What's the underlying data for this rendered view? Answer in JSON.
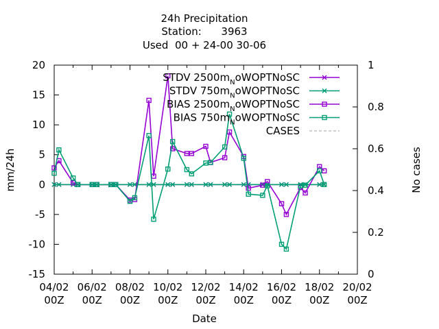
{
  "title": {
    "line1": "24h Precipitation",
    "line2": "Station:      3963",
    "line3": "Used  00 + 24-00 30-06"
  },
  "chart_data": {
    "type": "line",
    "xlabel": "Date",
    "ylabel": "mm/24h",
    "y2label": "No cases",
    "xlim": [
      "04/02 00Z",
      "20/02 00Z"
    ],
    "ylim": [
      -15,
      20
    ],
    "y2lim": [
      0,
      1
    ],
    "grid": false,
    "legend_position": "top-right",
    "x_ticks": [
      "04/02\n00Z",
      "06/02\n00Z",
      "08/02\n00Z",
      "10/02\n00Z",
      "12/02\n00Z",
      "14/02\n00Z",
      "16/02\n00Z",
      "18/02\n00Z",
      "20/02\n00Z"
    ],
    "y_ticks": [
      "-15",
      "-10",
      "-5",
      "0",
      "5",
      "10",
      "15",
      "20"
    ],
    "y2_ticks": [
      "0",
      "0.2",
      "0.4",
      "0.6",
      "0.8",
      "1"
    ],
    "series": [
      {
        "name": "STDV 2500m",
        "name_sub": "N",
        "name_suffix": "oWOPTNoSC",
        "color": "#9400d3",
        "marker": "x",
        "x": [
          0,
          0.25,
          1,
          1.25,
          2,
          2.25,
          3,
          3.25,
          4,
          4.25,
          5,
          5.25,
          6,
          6.25,
          7,
          7.25,
          8,
          8.25,
          9,
          9.25,
          10,
          10.25,
          11,
          11.25,
          12,
          12.25,
          13,
          13.25,
          14,
          14.25
        ],
        "values": [
          0,
          0,
          0,
          0,
          0,
          0,
          0,
          0,
          0,
          0,
          0,
          0,
          0,
          0,
          0,
          0,
          0,
          0,
          0,
          0,
          0,
          0,
          0,
          0,
          0,
          0,
          0,
          0,
          0,
          0
        ]
      },
      {
        "name": "STDV 750m",
        "name_sub": "N",
        "name_suffix": "oWOPTNoSC",
        "color": "#009e73",
        "marker": "x",
        "x": [
          0,
          0.25,
          1,
          1.25,
          2,
          2.25,
          3,
          3.25,
          4,
          4.25,
          5,
          5.25,
          6,
          6.25,
          7,
          7.25,
          8,
          8.25,
          9,
          9.25,
          10,
          10.25,
          11,
          11.25,
          12,
          12.25,
          13,
          13.25,
          14,
          14.25
        ],
        "values": [
          0,
          0,
          0,
          0,
          0,
          0,
          0,
          0,
          0,
          0,
          0,
          0,
          0,
          0,
          0,
          0,
          0,
          0,
          0,
          0,
          0,
          0,
          0,
          0,
          0,
          0,
          0,
          0,
          0,
          0
        ]
      },
      {
        "name": "BIAS 2500m",
        "name_sub": "N",
        "name_suffix": "oWOPTNoSC",
        "color": "#9400d3",
        "marker": "square",
        "x": [
          0,
          0.25,
          1,
          1.25,
          2,
          2.25,
          3,
          3.25,
          4,
          4.25,
          5,
          5.25,
          6,
          6.25,
          7,
          7.25,
          8,
          8.25,
          9,
          9.25,
          10,
          10.25,
          11,
          11.25,
          12,
          12.25,
          13,
          13.25,
          14,
          14.25
        ],
        "values": [
          2.8,
          4.0,
          0.3,
          0,
          0,
          0,
          0,
          0,
          -2.6,
          -2.5,
          14.1,
          1.4,
          18.2,
          6.0,
          5.2,
          5.2,
          6.4,
          3.7,
          4.5,
          8.8,
          4.7,
          -0.6,
          -0.1,
          0.5,
          -3.2,
          -5.0,
          -0.5,
          -1.4,
          3.0,
          2.3
        ]
      },
      {
        "name": "BIAS 750m",
        "name_sub": "N",
        "name_suffix": "oWOPTNoSC",
        "color": "#009e73",
        "marker": "square",
        "x": [
          0,
          0.25,
          1,
          1.25,
          2,
          2.25,
          3,
          3.25,
          4,
          4.25,
          5,
          5.25,
          6,
          6.25,
          7,
          7.25,
          8,
          8.25,
          9,
          9.25,
          10,
          10.25,
          11,
          11.25,
          12,
          12.25,
          13,
          13.25,
          14,
          14.25
        ],
        "values": [
          1.9,
          5.8,
          1.1,
          0,
          0,
          0,
          0,
          0,
          -2.8,
          -2.2,
          8.2,
          -5.8,
          2.6,
          7.2,
          2.5,
          1.8,
          3.6,
          3.7,
          6.3,
          11.8,
          4.4,
          -1.6,
          -1.8,
          -0.2,
          -10.0,
          -10.8,
          -0.2,
          -0.1,
          2.3,
          0.0
        ]
      },
      {
        "name": "CASES",
        "color": "#a0a0a0",
        "marker": "none",
        "dashed": true,
        "x": [],
        "values": []
      }
    ]
  }
}
